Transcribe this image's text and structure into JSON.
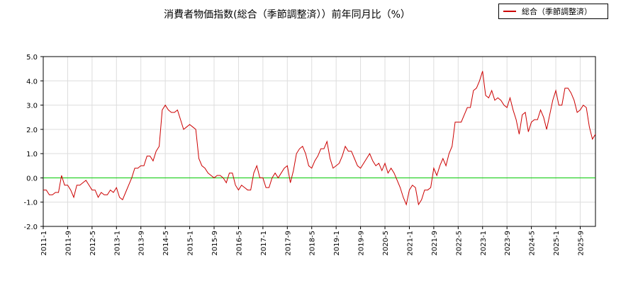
{
  "chart_data": {
    "type": "line",
    "title": "消費者物価指数(総合（季節調整済））前年同月比（%）",
    "xlabel": "",
    "ylabel": "",
    "ylim": [
      -2.0,
      5.0
    ],
    "yticks": [
      "5.0",
      "4.0",
      "3.0",
      "2.0",
      "1.0",
      "0.0",
      "-1.0",
      "-2.0"
    ],
    "xticks": [
      "2011-1",
      "2011-9",
      "2012-5",
      "2013-1",
      "2013-9",
      "2014-5",
      "2015-1",
      "2015-9",
      "2016-5",
      "2017-1",
      "2017-9",
      "2018-5",
      "2019-1",
      "2019-9",
      "2020-5",
      "2021-1",
      "2021-9",
      "2022-5",
      "2023-1",
      "2023-9",
      "2024-5",
      "2025-1",
      "2025-9"
    ],
    "grid": true,
    "legend_position": "top-right",
    "reference_line": 0.0,
    "colors": {
      "series": "#cc0000",
      "zero_line": "#00cc00",
      "grid": "#dddddd"
    },
    "series": [
      {
        "name": "総合（季節調整済）",
        "start": "2011-01",
        "values": [
          -0.5,
          -0.5,
          -0.7,
          -0.7,
          -0.6,
          -0.6,
          0.1,
          -0.3,
          -0.3,
          -0.5,
          -0.8,
          -0.3,
          -0.3,
          -0.2,
          -0.1,
          -0.3,
          -0.5,
          -0.5,
          -0.8,
          -0.6,
          -0.7,
          -0.7,
          -0.5,
          -0.6,
          -0.4,
          -0.8,
          -0.9,
          -0.6,
          -0.3,
          0.0,
          0.4,
          0.4,
          0.5,
          0.5,
          0.9,
          0.9,
          0.7,
          1.1,
          1.3,
          2.8,
          3.0,
          2.8,
          2.7,
          2.7,
          2.8,
          2.4,
          2.0,
          2.1,
          2.2,
          2.1,
          2.0,
          0.8,
          0.5,
          0.4,
          0.2,
          0.1,
          0.0,
          0.1,
          0.1,
          0.0,
          -0.2,
          0.2,
          0.2,
          -0.3,
          -0.5,
          -0.3,
          -0.4,
          -0.5,
          -0.5,
          0.2,
          0.5,
          0.0,
          0.0,
          -0.4,
          -0.4,
          0.0,
          0.2,
          0.0,
          0.2,
          0.4,
          0.5,
          -0.2,
          0.3,
          1.0,
          1.2,
          1.3,
          1.0,
          0.5,
          0.4,
          0.7,
          0.9,
          1.2,
          1.2,
          1.5,
          0.8,
          0.4,
          0.5,
          0.6,
          0.9,
          1.3,
          1.1,
          1.1,
          0.8,
          0.5,
          0.4,
          0.6,
          0.8,
          1.0,
          0.7,
          0.5,
          0.6,
          0.3,
          0.6,
          0.2,
          0.4,
          0.2,
          -0.1,
          -0.4,
          -0.8,
          -1.1,
          -0.5,
          -0.3,
          -0.4,
          -1.1,
          -0.9,
          -0.5,
          -0.5,
          -0.4,
          0.4,
          0.1,
          0.5,
          0.8,
          0.5,
          1.0,
          1.3,
          2.3,
          2.3,
          2.3,
          2.6,
          2.9,
          2.9,
          3.6,
          3.7,
          4.0,
          4.4,
          3.4,
          3.3,
          3.6,
          3.2,
          3.3,
          3.2,
          3.0,
          2.9,
          3.3,
          2.8,
          2.4,
          1.8,
          2.6,
          2.7,
          1.9,
          2.3,
          2.4,
          2.4,
          2.8,
          2.5,
          2.0,
          2.6,
          3.2,
          3.6,
          3.0,
          3.0,
          3.7,
          3.7,
          3.5,
          3.2,
          2.7,
          2.8,
          3.0,
          2.9,
          2.1,
          1.6,
          1.8
        ]
      }
    ]
  }
}
